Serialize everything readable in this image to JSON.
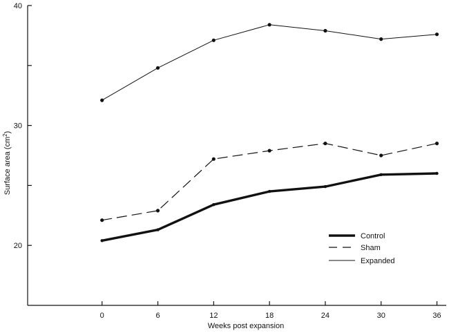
{
  "chart_data": {
    "type": "line",
    "title": "",
    "xlabel": "Weeks post expansion",
    "ylabel_main": "Surface area (cm",
    "ylabel_sup": "2",
    "ylabel_tail": ")",
    "x": [
      0,
      6,
      12,
      18,
      24,
      30,
      36
    ],
    "x_ticks": [
      0,
      6,
      12,
      18,
      24,
      30,
      36
    ],
    "y_ticks": [
      20,
      25,
      30,
      35,
      40
    ],
    "y_tick_labels": [
      "20",
      "",
      "30",
      "",
      "40"
    ],
    "xlim": [
      -8,
      37
    ],
    "ylim": [
      15,
      40
    ],
    "grid": false,
    "legend_position": "bottom-right",
    "series": [
      {
        "name": "Control",
        "style": "thick",
        "values": [
          20.4,
          21.3,
          23.4,
          24.5,
          24.9,
          25.9,
          26.0
        ]
      },
      {
        "name": "Sham",
        "style": "dashed",
        "values": [
          22.1,
          22.9,
          27.2,
          27.9,
          28.5,
          27.5,
          28.5
        ]
      },
      {
        "name": "Expanded",
        "style": "thin",
        "values": [
          32.1,
          34.8,
          37.1,
          38.4,
          37.9,
          37.2,
          37.6
        ]
      }
    ]
  }
}
